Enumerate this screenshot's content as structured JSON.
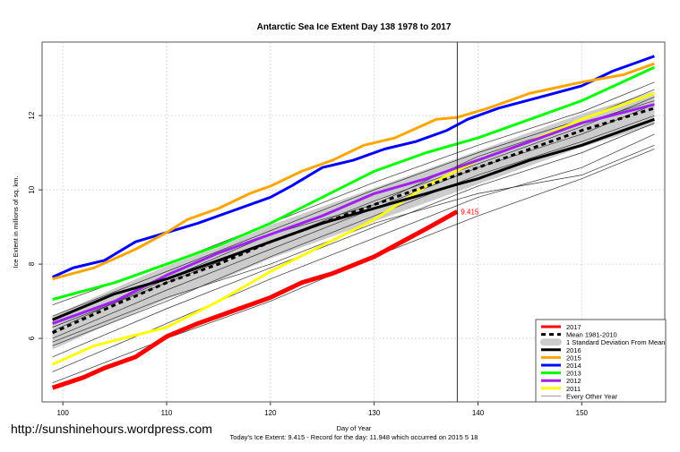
{
  "chart_data": {
    "type": "line",
    "title": "Antarctic Sea Ice Extent Day 138 1978 to 2017",
    "xlabel": "Day of Year",
    "ylabel": "Ice Extent in millions of sq. km.",
    "subtitle": "Today's Ice Extent: 9.415  - Record for the day: 11.948 which occurred on 2015 5 18",
    "watermark": "http://sunshinehours.wordpress.com",
    "xlim": [
      98,
      158
    ],
    "ylim": [
      4.29,
      13.98
    ],
    "xticks": [
      100,
      110,
      120,
      130,
      140,
      150
    ],
    "yticks": [
      6,
      8,
      10,
      12
    ],
    "grid": true,
    "vline_day": 138,
    "point_label": "9.415",
    "legend_position": "bottom-right",
    "std_band_width": 0.45,
    "series": [
      {
        "name": "2017",
        "color": "#ff0000",
        "width": 5,
        "x": [
          99,
          102,
          104,
          107,
          110,
          113,
          116,
          120,
          123,
          126,
          130,
          133,
          135,
          138
        ],
        "y": [
          4.67,
          4.95,
          5.2,
          5.5,
          6.05,
          6.4,
          6.7,
          7.1,
          7.5,
          7.75,
          8.2,
          8.65,
          8.95,
          9.415
        ]
      },
      {
        "name": "Mean 1981-2010",
        "color": "#000000",
        "width": 3,
        "dash": true,
        "x": [
          99,
          105,
          110,
          115,
          120,
          125,
          130,
          135,
          140,
          145,
          150,
          157
        ],
        "y": [
          6.15,
          6.9,
          7.5,
          8.0,
          8.6,
          9.1,
          9.6,
          10.1,
          10.6,
          11.1,
          11.6,
          12.2
        ]
      },
      {
        "name": "1 Standard Deviation From Mean",
        "color": "#cccccc",
        "band": true
      },
      {
        "name": "2016",
        "color": "#000000",
        "width": 3,
        "x": [
          99,
          105,
          110,
          115,
          120,
          125,
          130,
          135,
          138,
          140,
          145,
          150,
          157
        ],
        "y": [
          6.5,
          7.2,
          7.6,
          8.1,
          8.6,
          9.1,
          9.5,
          9.9,
          10.15,
          10.3,
          10.8,
          11.2,
          11.9
        ]
      },
      {
        "name": "2015",
        "color": "#ffa500",
        "width": 3,
        "x": [
          99,
          103,
          107,
          110,
          112,
          115,
          118,
          120,
          123,
          126,
          129,
          132,
          134,
          136,
          138,
          141,
          145,
          150,
          154,
          157
        ],
        "y": [
          7.6,
          7.9,
          8.4,
          8.85,
          9.2,
          9.5,
          9.9,
          10.1,
          10.5,
          10.8,
          11.2,
          11.4,
          11.65,
          11.9,
          11.95,
          12.2,
          12.6,
          12.9,
          13.1,
          13.4
        ]
      },
      {
        "name": "2014",
        "color": "#0000ff",
        "width": 3,
        "x": [
          99,
          101,
          104,
          107,
          110,
          113,
          116,
          120,
          122,
          125,
          128,
          131,
          134,
          137,
          139,
          142,
          146,
          150,
          153,
          157
        ],
        "y": [
          7.65,
          7.9,
          8.1,
          8.6,
          8.85,
          9.1,
          9.4,
          9.8,
          10.1,
          10.6,
          10.8,
          11.1,
          11.3,
          11.6,
          11.9,
          12.2,
          12.5,
          12.8,
          13.2,
          13.6
        ]
      },
      {
        "name": "2013",
        "color": "#00ff00",
        "width": 3,
        "x": [
          99,
          105,
          110,
          115,
          120,
          125,
          130,
          135,
          140,
          145,
          150,
          157
        ],
        "y": [
          7.05,
          7.5,
          8.0,
          8.5,
          9.1,
          9.8,
          10.5,
          11.0,
          11.4,
          11.9,
          12.4,
          13.3
        ]
      },
      {
        "name": "2012",
        "color": "#a020f0",
        "width": 3,
        "x": [
          99,
          105,
          110,
          115,
          120,
          125,
          130,
          135,
          140,
          145,
          150,
          157
        ],
        "y": [
          6.4,
          7.0,
          7.7,
          8.3,
          8.8,
          9.3,
          9.9,
          10.3,
          10.8,
          11.3,
          11.8,
          12.3
        ]
      },
      {
        "name": "2011",
        "color": "#ffff00",
        "width": 3,
        "x": [
          99,
          103,
          110,
          115,
          120,
          125,
          130,
          135,
          140,
          145,
          150,
          157
        ],
        "y": [
          5.3,
          5.8,
          6.3,
          7.0,
          7.8,
          8.5,
          9.2,
          10.1,
          10.8,
          11.3,
          11.9,
          12.6
        ]
      },
      {
        "name": "Every Other Year",
        "color": "#555555",
        "width": 0.8,
        "other": true,
        "x": [
          99,
          110,
          120,
          130,
          140,
          150,
          157
        ],
        "lines": [
          [
            4.8,
            6.0,
            7.0,
            8.2,
            9.3,
            10.3,
            11.1
          ],
          [
            5.1,
            6.4,
            7.6,
            8.7,
            9.8,
            10.6,
            11.5
          ],
          [
            5.5,
            6.8,
            7.9,
            9.0,
            10.1,
            11.0,
            11.8
          ],
          [
            5.8,
            7.0,
            8.2,
            9.3,
            10.4,
            11.3,
            12.0
          ],
          [
            6.0,
            7.3,
            8.4,
            9.5,
            10.6,
            11.5,
            12.3
          ],
          [
            6.3,
            7.5,
            8.6,
            9.7,
            10.7,
            11.7,
            12.5
          ],
          [
            6.6,
            7.8,
            8.9,
            10.0,
            11.0,
            11.9,
            12.7
          ],
          [
            6.9,
            8.0,
            9.1,
            10.2,
            11.2,
            12.1,
            12.9
          ],
          [
            5.9,
            7.1,
            8.0,
            9.1,
            9.9,
            10.4,
            11.2
          ],
          [
            6.2,
            7.6,
            8.8,
            9.6,
            10.9,
            11.8,
            12.4
          ]
        ]
      }
    ]
  }
}
